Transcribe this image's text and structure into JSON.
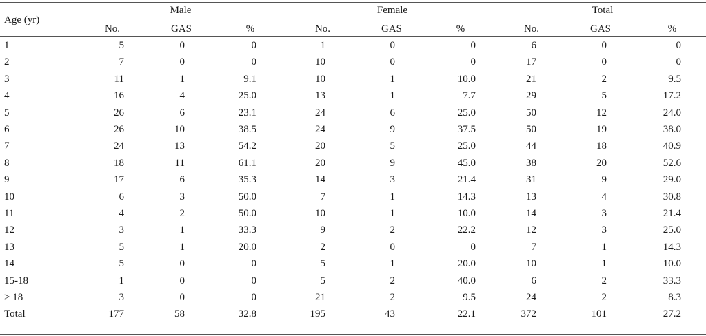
{
  "table": {
    "row_header": "Age (yr)",
    "groups": [
      "Male",
      "Female",
      "Total"
    ],
    "subheaders": [
      "No.",
      "GAS",
      "%"
    ],
    "rows": [
      {
        "age": "1",
        "values": [
          "5",
          "0",
          "0",
          "1",
          "0",
          "0",
          "6",
          "0",
          "0"
        ]
      },
      {
        "age": "2",
        "values": [
          "7",
          "0",
          "0",
          "10",
          "0",
          "0",
          "17",
          "0",
          "0"
        ]
      },
      {
        "age": "3",
        "values": [
          "11",
          "1",
          "9.1",
          "10",
          "1",
          "10.0",
          "21",
          "2",
          "9.5"
        ]
      },
      {
        "age": "4",
        "values": [
          "16",
          "4",
          "25.0",
          "13",
          "1",
          "7.7",
          "29",
          "5",
          "17.2"
        ]
      },
      {
        "age": "5",
        "values": [
          "26",
          "6",
          "23.1",
          "24",
          "6",
          "25.0",
          "50",
          "12",
          "24.0"
        ]
      },
      {
        "age": "6",
        "values": [
          "26",
          "10",
          "38.5",
          "24",
          "9",
          "37.5",
          "50",
          "19",
          "38.0"
        ]
      },
      {
        "age": "7",
        "values": [
          "24",
          "13",
          "54.2",
          "20",
          "5",
          "25.0",
          "44",
          "18",
          "40.9"
        ]
      },
      {
        "age": "8",
        "values": [
          "18",
          "11",
          "61.1",
          "20",
          "9",
          "45.0",
          "38",
          "20",
          "52.6"
        ]
      },
      {
        "age": "9",
        "values": [
          "17",
          "6",
          "35.3",
          "14",
          "3",
          "21.4",
          "31",
          "9",
          "29.0"
        ]
      },
      {
        "age": "10",
        "values": [
          "6",
          "3",
          "50.0",
          "7",
          "1",
          "14.3",
          "13",
          "4",
          "30.8"
        ]
      },
      {
        "age": "11",
        "values": [
          "4",
          "2",
          "50.0",
          "10",
          "1",
          "10.0",
          "14",
          "3",
          "21.4"
        ]
      },
      {
        "age": "12",
        "values": [
          "3",
          "1",
          "33.3",
          "9",
          "2",
          "22.2",
          "12",
          "3",
          "25.0"
        ]
      },
      {
        "age": "13",
        "values": [
          "5",
          "1",
          "20.0",
          "2",
          "0",
          "0",
          "7",
          "1",
          "14.3"
        ]
      },
      {
        "age": "14",
        "values": [
          "5",
          "0",
          "0",
          "5",
          "1",
          "20.0",
          "10",
          "1",
          "10.0"
        ]
      },
      {
        "age": "15-18",
        "values": [
          "1",
          "0",
          "0",
          "5",
          "2",
          "40.0",
          "6",
          "2",
          "33.3"
        ]
      },
      {
        "age": "> 18",
        "values": [
          "3",
          "0",
          "0",
          "21",
          "2",
          "9.5",
          "24",
          "2",
          "8.3"
        ]
      },
      {
        "age": "Total",
        "values": [
          "177",
          "58",
          "32.8",
          "195",
          "43",
          "22.1",
          "372",
          "101",
          "27.2"
        ]
      }
    ]
  }
}
